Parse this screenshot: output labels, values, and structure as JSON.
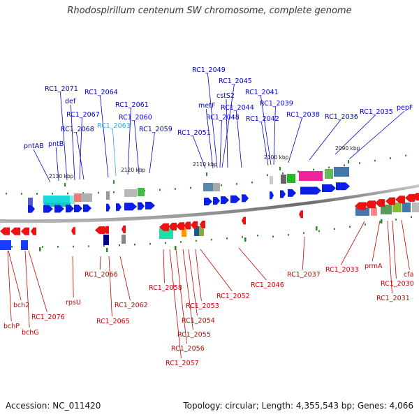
{
  "title": "Rhodospirillum centenum SW chromosome, complete genome",
  "footer": {
    "accession": "Accession: NC_011420",
    "summary": "Topology: circular; Length: 4,355,543 bp; Genes: 4,066"
  },
  "colors": {
    "forward_label": "#0000cc",
    "reverse_label": "#cc0000",
    "highlight_label": "#33aadd",
    "forward_arrow": "#0a1ee6",
    "reverse_arrow": "#ee1111",
    "backbone": "#808080",
    "tick": "#2a8a2a"
  },
  "scale_labels": [
    "2130 kbp",
    "2120 kbp",
    "2110 kbp",
    "2100 kbp",
    "2090 kbp"
  ],
  "forward_genes": [
    "RC1_2049",
    "RC1_2045",
    "RC1_2071",
    "RC1_2064",
    "RC1_2041",
    "metF",
    "cstS2",
    "def",
    "RC1_2061",
    "RC1_2044",
    "RC1_2039",
    "pepF",
    "RC1_2067",
    "RC1_2048",
    "RC1_2038",
    "RC1_2035",
    "RC1_2042",
    "RC1_2036",
    "RC1_2063",
    "RC1_2060",
    "RC1_2068",
    "RC1_2059",
    "RC1_2051",
    "pntAB",
    "pntB"
  ],
  "reverse_genes": [
    "RC1_2037",
    "RC1_2033",
    "prmA",
    "cfa",
    "RC1_2066",
    "RC1_2058",
    "RC1_2046",
    "RC1_2030",
    "RC1_2052",
    "rpsU",
    "bch2",
    "RC1_2053",
    "RC1_2062",
    "RC1_2031",
    "RC1_2065",
    "RC1_2076",
    "RC1_2054",
    "bchP",
    "RC1_2055",
    "bchG",
    "RC1_2056",
    "RC1_2057"
  ]
}
